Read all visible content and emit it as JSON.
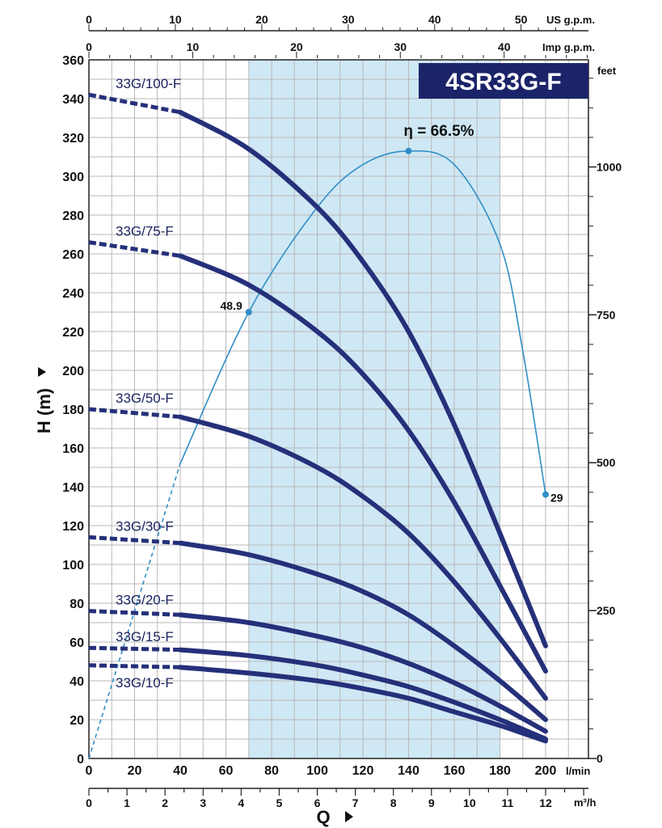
{
  "chart_data": {
    "type": "line",
    "title": "4SR33G-F",
    "ylabel": "H (m)",
    "xlabel": "Q",
    "x_unit": "l/min",
    "x2_unit": "m³/h",
    "top1_unit": "US g.p.m.",
    "top2_unit": "Imp g.p.m.",
    "right_unit": "feet",
    "xlim": [
      0,
      220
    ],
    "ylim": [
      0,
      360
    ],
    "x_ticks": [
      "0",
      "20",
      "40",
      "60",
      "80",
      "100",
      "120",
      "140",
      "160",
      "180",
      "200"
    ],
    "y_ticks": [
      "0",
      "20",
      "40",
      "60",
      "80",
      "100",
      "120",
      "140",
      "160",
      "180",
      "200",
      "220",
      "240",
      "260",
      "280",
      "300",
      "320",
      "340",
      "360"
    ],
    "x2_ticks": [
      "0",
      "1",
      "2",
      "3",
      "4",
      "5",
      "6",
      "7",
      "8",
      "9",
      "10",
      "11",
      "12"
    ],
    "top1_ticks": [
      "0",
      "10",
      "20",
      "30",
      "40",
      "50"
    ],
    "top2_ticks": [
      "0",
      "10",
      "20",
      "30",
      "40"
    ],
    "right_ticks": [
      "0",
      "250",
      "500",
      "750",
      "1000"
    ],
    "highlight_range": [
      70,
      180
    ],
    "series": [
      {
        "name": "33G/100-F",
        "x": [
          0,
          40,
          70,
          100,
          120,
          140,
          160,
          180,
          200
        ],
        "y": [
          342,
          333,
          314,
          284,
          256,
          220,
          172,
          116,
          58
        ]
      },
      {
        "name": "33G/75-F",
        "x": [
          0,
          40,
          70,
          100,
          120,
          140,
          160,
          180,
          200
        ],
        "y": [
          266,
          259,
          244,
          220,
          198,
          169,
          132,
          89,
          45
        ]
      },
      {
        "name": "33G/50-F",
        "x": [
          0,
          40,
          70,
          100,
          120,
          140,
          160,
          180,
          200
        ],
        "y": [
          180,
          176,
          166,
          150,
          135,
          116,
          91,
          62,
          31
        ]
      },
      {
        "name": "33G/30-F",
        "x": [
          0,
          40,
          70,
          100,
          120,
          140,
          160,
          180,
          200
        ],
        "y": [
          114,
          111,
          105,
          95,
          86,
          74,
          58,
          40,
          20
        ]
      },
      {
        "name": "33G/20-F",
        "x": [
          0,
          40,
          70,
          100,
          120,
          140,
          160,
          180,
          200
        ],
        "y": [
          76,
          74,
          70,
          63,
          57,
          49,
          39,
          27,
          14
        ]
      },
      {
        "name": "33G/15-F",
        "x": [
          0,
          40,
          70,
          100,
          120,
          140,
          160,
          180,
          200
        ],
        "y": [
          57,
          56,
          53,
          48,
          43,
          37,
          29,
          20,
          10
        ]
      },
      {
        "name": "33G/10-F",
        "x": [
          0,
          40,
          70,
          100,
          120,
          140,
          160,
          180,
          200
        ],
        "y": [
          48,
          47,
          44,
          40,
          36,
          31,
          24,
          17,
          9
        ]
      }
    ],
    "efficiency": {
      "label": "η = 66.5%",
      "x": [
        0,
        40,
        70,
        100,
        120,
        140,
        160,
        180,
        190,
        200
      ],
      "y": [
        0,
        152,
        230,
        284,
        306,
        313,
        306,
        265,
        210,
        136
      ],
      "points": [
        {
          "x": 70,
          "y": 230,
          "label": "48.9"
        },
        {
          "x": 140,
          "y": 313,
          "label": ""
        },
        {
          "x": 200,
          "y": 136,
          "label": "29"
        }
      ]
    }
  }
}
